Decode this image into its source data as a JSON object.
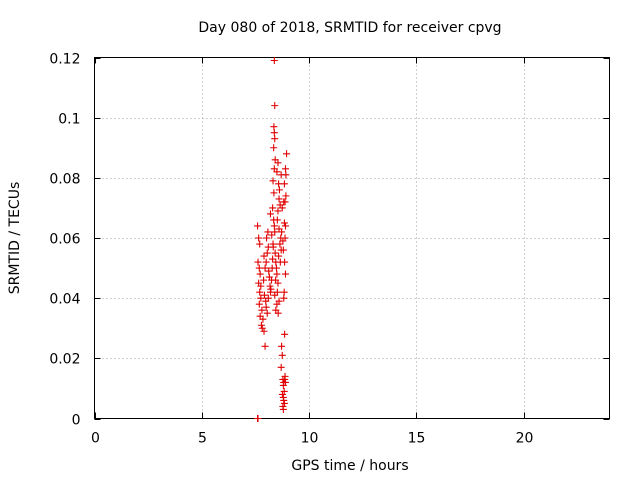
{
  "chart_data": {
    "type": "scatter",
    "title": "Day 080 of 2018, SRMTID for receiver cpvg",
    "xlabel": "GPS time / hours",
    "ylabel": "SRMTID / TECUs",
    "xlim": [
      0,
      24
    ],
    "ylim": [
      0,
      0.12
    ],
    "xticks": [
      0,
      5,
      10,
      15,
      20
    ],
    "xtick_labels": [
      "0",
      "5",
      "10",
      "15",
      "20"
    ],
    "yticks": [
      0,
      0.02,
      0.04,
      0.06,
      0.08,
      0.1,
      0.12
    ],
    "ytick_labels": [
      "0",
      "0.02",
      "0.04",
      "0.06",
      "0.08",
      "0.1",
      "0.12"
    ],
    "grid": true,
    "marker": "plus",
    "color": "#e00000",
    "series": [
      {
        "points": [
          [
            7.6,
            0.0
          ],
          [
            7.62,
            0.0
          ],
          [
            7.6,
            0.064
          ],
          [
            7.65,
            0.06
          ],
          [
            7.7,
            0.058
          ],
          [
            7.62,
            0.052
          ],
          [
            7.68,
            0.05
          ],
          [
            7.72,
            0.048
          ],
          [
            7.65,
            0.045
          ],
          [
            7.7,
            0.042
          ],
          [
            7.75,
            0.04
          ],
          [
            7.68,
            0.038
          ],
          [
            7.8,
            0.036
          ],
          [
            7.72,
            0.034
          ],
          [
            7.85,
            0.033
          ],
          [
            7.78,
            0.031
          ],
          [
            7.82,
            0.03
          ],
          [
            7.9,
            0.029
          ],
          [
            7.95,
            0.024
          ],
          [
            7.75,
            0.044
          ],
          [
            7.88,
            0.046
          ],
          [
            7.92,
            0.041
          ],
          [
            7.98,
            0.039
          ],
          [
            8.0,
            0.037
          ],
          [
            8.05,
            0.035
          ],
          [
            7.95,
            0.05
          ],
          [
            8.0,
            0.052
          ],
          [
            8.05,
            0.055
          ],
          [
            8.1,
            0.057
          ],
          [
            8.02,
            0.06
          ],
          [
            8.08,
            0.062
          ],
          [
            7.9,
            0.054
          ],
          [
            8.12,
            0.049
          ],
          [
            8.15,
            0.047
          ],
          [
            8.18,
            0.044
          ],
          [
            8.2,
            0.042
          ],
          [
            8.1,
            0.04
          ],
          [
            8.22,
            0.043
          ],
          [
            8.25,
            0.046
          ],
          [
            8.28,
            0.05
          ],
          [
            8.3,
            0.053
          ],
          [
            8.32,
            0.058
          ],
          [
            8.26,
            0.061
          ],
          [
            8.2,
            0.068
          ],
          [
            8.35,
            0.066
          ],
          [
            8.38,
            0.064
          ],
          [
            8.4,
            0.062
          ],
          [
            8.33,
            0.057
          ],
          [
            8.42,
            0.055
          ],
          [
            8.45,
            0.052
          ],
          [
            8.48,
            0.05
          ],
          [
            8.5,
            0.048
          ],
          [
            8.44,
            0.046
          ],
          [
            8.3,
            0.07
          ],
          [
            8.36,
            0.075
          ],
          [
            8.32,
            0.079
          ],
          [
            8.38,
            0.083
          ],
          [
            8.42,
            0.086
          ],
          [
            8.35,
            0.09
          ],
          [
            8.4,
            0.093
          ],
          [
            8.38,
            0.095
          ],
          [
            8.36,
            0.097
          ],
          [
            8.4,
            0.104
          ],
          [
            8.38,
            0.119
          ],
          [
            8.55,
            0.085
          ],
          [
            8.5,
            0.082
          ],
          [
            8.58,
            0.078
          ],
          [
            8.62,
            0.076
          ],
          [
            8.6,
            0.073
          ],
          [
            8.65,
            0.071
          ],
          [
            8.55,
            0.069
          ],
          [
            8.52,
            0.066
          ],
          [
            8.6,
            0.063
          ],
          [
            8.68,
            0.06
          ],
          [
            8.64,
            0.058
          ],
          [
            8.7,
            0.056
          ],
          [
            8.58,
            0.054
          ],
          [
            8.66,
            0.052
          ],
          [
            8.55,
            0.045
          ],
          [
            8.52,
            0.042
          ],
          [
            8.6,
            0.039
          ],
          [
            8.5,
            0.038
          ],
          [
            8.45,
            0.036
          ],
          [
            8.56,
            0.035
          ],
          [
            8.4,
            0.041
          ],
          [
            8.72,
            0.062
          ],
          [
            8.78,
            0.059
          ],
          [
            8.75,
            0.07
          ],
          [
            8.82,
            0.072
          ],
          [
            8.85,
            0.065
          ],
          [
            8.9,
            0.064
          ],
          [
            8.88,
            0.06
          ],
          [
            8.8,
            0.056
          ],
          [
            8.86,
            0.052
          ],
          [
            8.9,
            0.048
          ],
          [
            8.84,
            0.042
          ],
          [
            8.82,
            0.04
          ],
          [
            8.7,
            0.081
          ],
          [
            8.9,
            0.083
          ],
          [
            8.92,
            0.081
          ],
          [
            8.95,
            0.088
          ],
          [
            8.85,
            0.078
          ],
          [
            8.92,
            0.074
          ],
          [
            8.88,
            0.072
          ],
          [
            8.72,
            0.024
          ],
          [
            8.75,
            0.021
          ],
          [
            8.7,
            0.017
          ],
          [
            8.78,
            0.013
          ],
          [
            8.82,
            0.012
          ],
          [
            8.86,
            0.013
          ],
          [
            8.88,
            0.014
          ],
          [
            8.8,
            0.011
          ],
          [
            8.84,
            0.009
          ],
          [
            8.76,
            0.008
          ],
          [
            8.8,
            0.007
          ],
          [
            8.82,
            0.006
          ],
          [
            8.85,
            0.005
          ],
          [
            8.78,
            0.004
          ],
          [
            8.8,
            0.003
          ],
          [
            8.86,
            0.028
          ],
          [
            8.9,
            0.012
          ]
        ]
      }
    ]
  }
}
